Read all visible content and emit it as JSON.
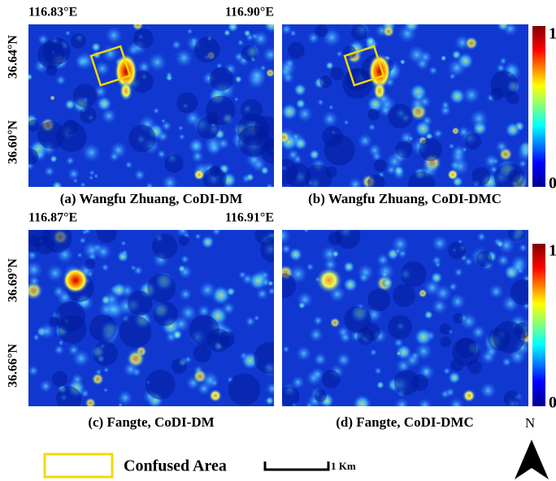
{
  "panels": [
    {
      "caption": "(a) Wangfu Zhuang, CoDI-DM",
      "lon_labels": [
        "116.83°E",
        "116.90°E"
      ],
      "lat_labels": [
        "36.64°N",
        "36.60°N"
      ]
    },
    {
      "caption": "(b) Wangfu Zhuang, CoDI-DMC"
    },
    {
      "caption": "(c) Fangte, CoDI-DM",
      "lon_labels": [
        "116.87°E",
        "116.91°E"
      ],
      "lat_labels": [
        "36.69°N",
        "36.66°N"
      ]
    },
    {
      "caption": "(d) Fangte, CoDI-DMC"
    }
  ],
  "colorbars": [
    {
      "max": "1",
      "min": "0"
    },
    {
      "max": "1",
      "min": "0"
    }
  ],
  "legend": {
    "label": "Confused Area"
  },
  "scale_bar": {
    "label": "1 Km"
  },
  "north_arrow": {
    "label": "N"
  }
}
